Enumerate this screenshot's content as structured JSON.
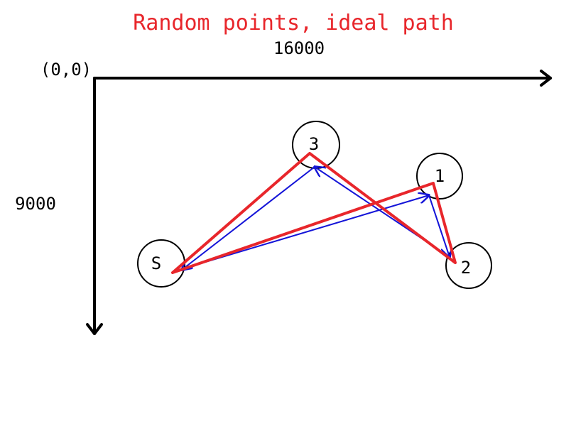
{
  "title": "Random points, ideal path",
  "colors": {
    "title": "#e8262b",
    "ideal_path": "#e8262b",
    "random_path": "#1414d8",
    "axes": "#000000",
    "circles": "#000000"
  },
  "axes": {
    "origin_label": "(0,0)",
    "x_extent_label": "16000",
    "y_extent_label": "9000"
  },
  "nodes": [
    {
      "id": "S",
      "label": "S"
    },
    {
      "id": "1",
      "label": "1"
    },
    {
      "id": "2",
      "label": "2"
    },
    {
      "id": "3",
      "label": "3"
    }
  ]
}
